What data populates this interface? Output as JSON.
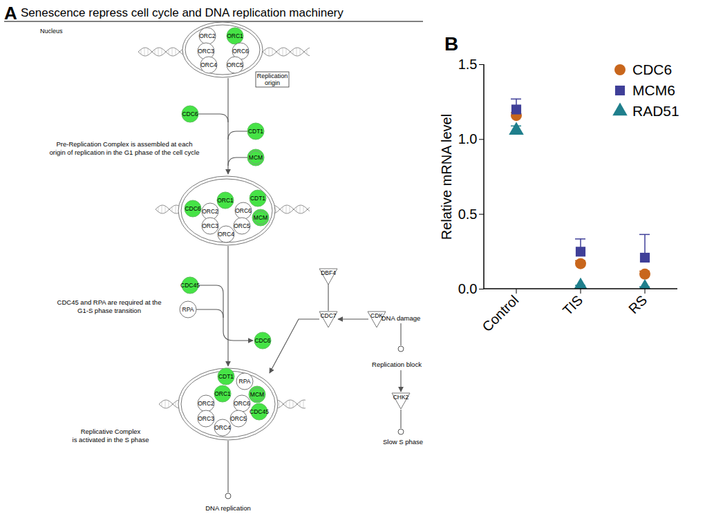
{
  "panel_a": {
    "letter": "A",
    "title": "Senescence repress cell cycle and DNA replication machinery",
    "compartment": "Nucleus",
    "nodes": [
      {
        "label": "ORC2",
        "highlighted": false
      },
      {
        "label": "ORC1",
        "highlighted": true
      },
      {
        "label": "ORC3",
        "highlighted": false
      },
      {
        "label": "ORC6",
        "highlighted": false
      },
      {
        "label": "ORC4",
        "highlighted": false
      },
      {
        "label": "ORC5",
        "highlighted": false
      },
      {
        "label": "CDC6",
        "highlighted": true
      },
      {
        "label": "CDT1",
        "highlighted": true
      },
      {
        "label": "MCM",
        "highlighted": true
      },
      {
        "label": "CDC6",
        "highlighted": true
      },
      {
        "label": "ORC1",
        "highlighted": true
      },
      {
        "label": "CDT1",
        "highlighted": true
      },
      {
        "label": "ORC2",
        "highlighted": false
      },
      {
        "label": "ORC6",
        "highlighted": false
      },
      {
        "label": "MCM",
        "highlighted": true
      },
      {
        "label": "ORC3",
        "highlighted": false
      },
      {
        "label": "ORC5",
        "highlighted": false
      },
      {
        "label": "ORC4",
        "highlighted": false
      },
      {
        "label": "CDC45",
        "highlighted": true
      },
      {
        "label": "RPA",
        "highlighted": false
      },
      {
        "label": "CDC6",
        "highlighted": true
      },
      {
        "label": "CDT1",
        "highlighted": true
      },
      {
        "label": "RPA",
        "highlighted": false
      },
      {
        "label": "ORC1",
        "highlighted": true
      },
      {
        "label": "MCM",
        "highlighted": true
      },
      {
        "label": "ORC2",
        "highlighted": false
      },
      {
        "label": "ORC6",
        "highlighted": false
      },
      {
        "label": "CDC45",
        "highlighted": true
      },
      {
        "label": "ORC3",
        "highlighted": false
      },
      {
        "label": "ORC5",
        "highlighted": false
      },
      {
        "label": "ORC4",
        "highlighted": false
      },
      {
        "label": "DBF4",
        "highlighted": false
      },
      {
        "label": "CDC7",
        "highlighted": false
      },
      {
        "label": "CDK",
        "highlighted": false
      },
      {
        "label": "CHK2",
        "highlighted": false
      }
    ],
    "texts": {
      "origin": "Replication origin",
      "pre_rc": [
        "Pre-Replication Complex is assembled at each",
        "origin of replication in the G1 phase of the cell cycle"
      ],
      "g1s": [
        "CDC45 and RPA are required at the",
        "G1-S phase transition"
      ],
      "replicative": [
        "Replicative Complex",
        "is activated in the S phase"
      ],
      "damage": "DNA damage",
      "block": "Replication block",
      "slow": "Slow S phase",
      "replication": "DNA replication"
    }
  },
  "chart_data": {
    "type": "scatter",
    "letter": "B",
    "categories": [
      "Control",
      "TIS",
      "RS"
    ],
    "ylabel": "Relative mRNA level",
    "ylim": [
      0,
      1.5
    ],
    "yticks": [
      {
        "value": 0,
        "label": "0.0"
      },
      0.5,
      {
        "value": 1,
        "label": "1.0"
      },
      1.5
    ],
    "legend": "top-right",
    "series": [
      {
        "name": "CDC6",
        "color": "#c8661c",
        "marker": "circle",
        "values": [
          1.16,
          0.17,
          0.1
        ],
        "errors": [
          0.02,
          0.02,
          0.02
        ]
      },
      {
        "name": "MCM6",
        "color": "#3f3f98",
        "marker": "square",
        "values": [
          1.2,
          0.25,
          0.21
        ],
        "errors": [
          0.07,
          0.085,
          0.155
        ]
      },
      {
        "name": "RAD51",
        "color": "#1f7f8c",
        "marker": "triangle",
        "values": [
          1.06,
          0.02,
          0.01
        ],
        "errors": [
          0.03,
          0.005,
          0.005
        ]
      }
    ]
  }
}
